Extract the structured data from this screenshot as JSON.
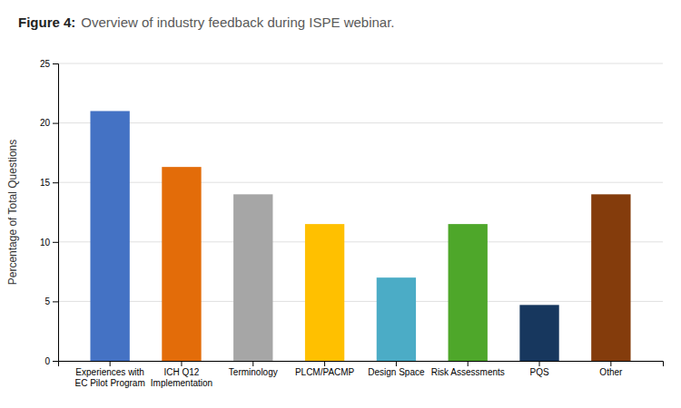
{
  "chart_data": {
    "type": "bar",
    "title": "Figure 4:",
    "subtitle": "Overview of industry feedback during ISPE webinar.",
    "categories": [
      "Experiences with\nEC Pilot Program",
      "ICH Q12\nImplementation",
      "Terminology",
      "PLCM/PACMP",
      "Design Space",
      "Risk Assessments",
      "PQS",
      "Other"
    ],
    "values": [
      21.0,
      16.3,
      14.0,
      11.5,
      7.0,
      11.5,
      4.7,
      14.0
    ],
    "colors": [
      "#4472C4",
      "#E36C09",
      "#A6A6A6",
      "#FFC000",
      "#4BACC6",
      "#4EA72A",
      "#17375E",
      "#843C0C"
    ],
    "ylabel": "Percentage of Total Questions",
    "ylim": [
      0,
      25
    ],
    "yticks": [
      0,
      5,
      10,
      15,
      20,
      25
    ],
    "grid": true
  }
}
